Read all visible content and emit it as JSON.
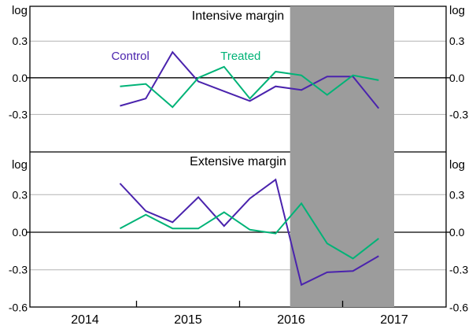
{
  "colors": {
    "background": "#ffffff",
    "axis": "#000000",
    "grid": "#b3b3b3",
    "band": "#9c9c9c",
    "control": "#4a23ad",
    "treated": "#00b377"
  },
  "x_axis": {
    "tick_positions": [
      2015,
      2016,
      2017
    ],
    "labels": [
      {
        "text": "2014",
        "x": 2014.5
      },
      {
        "text": "2015",
        "x": 2015.5
      },
      {
        "text": "2016",
        "x": 2016.5
      },
      {
        "text": "2017",
        "x": 2017.5
      }
    ]
  },
  "chart_data": [
    {
      "type": "line",
      "panel": "top",
      "title": "Intensive margin",
      "ylabel_left": "log",
      "ylabel_right": "log",
      "ylim": [
        -0.6,
        0.6
      ],
      "grid": "horizontal",
      "legend_position": "inline-labels",
      "ytick_values": [
        0.3,
        0,
        -0.3
      ],
      "ytick_labels": [
        "0.3",
        "0.0",
        "-0.3"
      ],
      "x": [
        2014.84,
        2015.09,
        2015.35,
        2015.6,
        2015.85,
        2016.1,
        2016.35,
        2016.6,
        2016.85,
        2017.1,
        2017.35
      ],
      "series": [
        {
          "name": "Control",
          "color": "#4a23ad",
          "values": [
            -0.23,
            -0.17,
            0.21,
            -0.03,
            -0.11,
            -0.19,
            -0.07,
            -0.1,
            0.01,
            0.01,
            -0.25
          ]
        },
        {
          "name": "Treated",
          "color": "#00b377",
          "values": [
            -0.07,
            -0.05,
            -0.24,
            0.0,
            0.09,
            -0.17,
            0.05,
            0.02,
            -0.14,
            0.02,
            -0.02
          ]
        }
      ],
      "series_labels": [
        {
          "text": "Control",
          "color": "#4a23ad",
          "x": 2014.94,
          "y": 0.18
        },
        {
          "text": "Treated",
          "color": "#00b377",
          "x": 2016.01,
          "y": 0.18
        }
      ],
      "shaded_span": {
        "from": 2016.49,
        "to": 2017.5,
        "color": "#9c9c9c"
      }
    },
    {
      "type": "line",
      "panel": "bottom",
      "title": "Extensive margin",
      "ylabel_left": "log",
      "ylabel_right": "log",
      "ylim": [
        -0.6,
        0.64
      ],
      "grid": "horizontal",
      "ytick_values": [
        0.3,
        0,
        -0.3,
        -0.6
      ],
      "ytick_labels": [
        "0.3",
        "0.0",
        "-0.3",
        "-0.6"
      ],
      "x": [
        2014.84,
        2015.09,
        2015.35,
        2015.6,
        2015.85,
        2016.1,
        2016.35,
        2016.6,
        2016.85,
        2017.1,
        2017.35
      ],
      "series": [
        {
          "name": "Control",
          "color": "#4a23ad",
          "values": [
            0.39,
            0.17,
            0.08,
            0.28,
            0.05,
            0.27,
            0.42,
            -0.42,
            -0.32,
            -0.31,
            -0.19
          ]
        },
        {
          "name": "Treated",
          "color": "#00b377",
          "values": [
            0.03,
            0.14,
            0.03,
            0.03,
            0.16,
            0.02,
            -0.01,
            0.23,
            -0.09,
            -0.21,
            -0.05
          ]
        }
      ],
      "series_labels": [],
      "shaded_span": {
        "from": 2016.49,
        "to": 2017.5,
        "color": "#9c9c9c"
      }
    }
  ]
}
